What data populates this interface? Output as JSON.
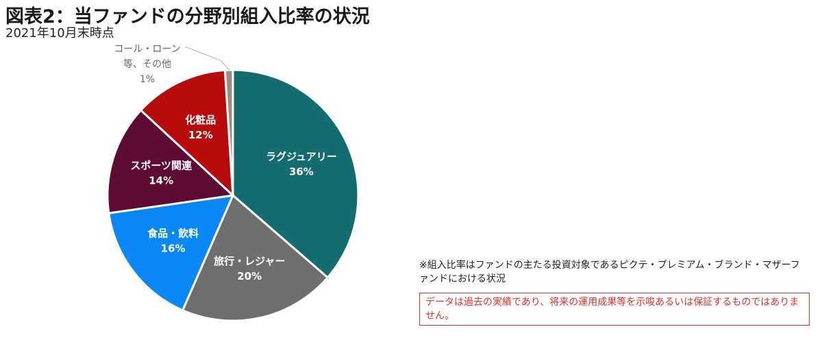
{
  "header": {
    "title": "図表2：当ファンドの分野別組入比率の状況",
    "subtitle": "2021年10月末時点"
  },
  "chart_data": {
    "type": "pie",
    "slices": [
      {
        "lines": [
          "ラグジュアリー",
          "36%"
        ],
        "value": 36,
        "color": "#146b70"
      },
      {
        "lines": [
          "旅行・レジャー",
          "20%"
        ],
        "value": 20,
        "color": "#6e6e6e"
      },
      {
        "lines": [
          "食品・飲料",
          "16%"
        ],
        "value": 16,
        "color": "#0a86f5"
      },
      {
        "lines": [
          "スポーツ関連",
          "14%"
        ],
        "value": 14,
        "color": "#5e0b34"
      },
      {
        "lines": [
          "化粧品",
          "12%"
        ],
        "value": 12,
        "color": "#b80b0b"
      },
      {
        "lines": [
          "コール・ローン",
          "等、その他",
          "1%"
        ],
        "value": 1,
        "color": "#a08b83"
      }
    ]
  },
  "notes": {
    "footnote": "※組入比率はファンドの主たる投資対象であるピクテ・プレミアム・ブランド・マザーファンドにおける状況",
    "disclaimer": "データは過去の実績であり、将来の運用成果等を示唆あるいは保証するものではありません。"
  }
}
